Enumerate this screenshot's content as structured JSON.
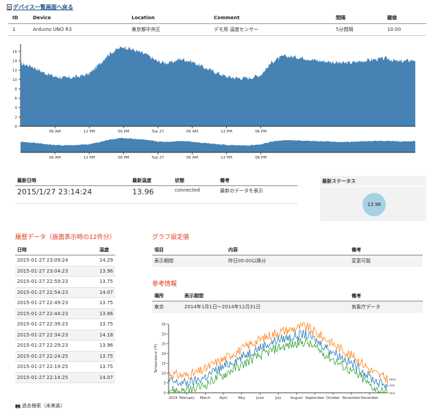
{
  "back_link": {
    "label": "デバイス一覧画面へ戻る"
  },
  "device_table": {
    "headers": [
      "ID",
      "Device",
      "Location",
      "Comment",
      "間隔",
      "閾値"
    ],
    "row": [
      "1",
      "Arduino UNO R3",
      "東京都中央区",
      "デモ用 温度センサー",
      "5分間隔",
      "10.00"
    ]
  },
  "chart_data": [
    {
      "type": "area",
      "title": "",
      "xlabel": "",
      "ylabel": "",
      "x_ticks": [
        "06 AM",
        "12 PM",
        "06 PM",
        "Tue 27",
        "06 AM",
        "12 PM",
        "06 PM"
      ],
      "y_ticks": [
        "0",
        "2",
        "4",
        "6",
        "8",
        "10",
        "12",
        "14",
        "16"
      ],
      "ylim": [
        0,
        17
      ],
      "x_hours": [
        0,
        2,
        4,
        6,
        8,
        10,
        12,
        14,
        15,
        16,
        17,
        18,
        20,
        22,
        24,
        26,
        28,
        30,
        32,
        34,
        36,
        38,
        39,
        40,
        42,
        44,
        46,
        48,
        50,
        52,
        54,
        56,
        58,
        60,
        62,
        64,
        66,
        69
      ],
      "values": [
        13.4,
        12.8,
        11.5,
        10.6,
        10.3,
        10.6,
        11.2,
        13.5,
        15.0,
        15.8,
        16.5,
        17.0,
        16.2,
        15.3,
        13.8,
        13.5,
        14.4,
        13.8,
        12.6,
        11.6,
        10.6,
        10.3,
        10.3,
        10.3,
        11.0,
        13.8,
        15.0,
        14.8,
        14.5,
        14.0,
        13.8,
        13.5,
        13.6,
        14.0,
        14.3,
        14.5,
        13.8,
        14.2
      ]
    },
    {
      "type": "line",
      "title": "",
      "ylabel": "Temperature (ºF)",
      "xlabel": "",
      "x_ticks": [
        "2014",
        "February",
        "March",
        "April",
        "May",
        "June",
        "July",
        "August",
        "September",
        "October",
        "November",
        "December"
      ],
      "y_ticks": [
        "0",
        "5",
        "10",
        "15",
        "20",
        "25",
        "30",
        "35"
      ],
      "ylim": [
        0,
        35
      ],
      "x_months": [
        0,
        0.5,
        1,
        1.5,
        2,
        2.5,
        3,
        3.5,
        4,
        4.5,
        5,
        5.5,
        6,
        6.5,
        7,
        7.5,
        8,
        8.5,
        9,
        9.5,
        10,
        10.5,
        11,
        11.5,
        12
      ],
      "series": [
        {
          "name": "max",
          "color": "#ff7f0e",
          "values": [
            10,
            9,
            9,
            10,
            12,
            15,
            17,
            20,
            22,
            25,
            27,
            29,
            31,
            32,
            33,
            34,
            31,
            28,
            25,
            22,
            19,
            16,
            12,
            9,
            7
          ]
        },
        {
          "name": "ave",
          "color": "#1f77b4",
          "values": [
            6,
            5,
            5,
            6,
            8,
            11,
            13,
            16,
            18,
            21,
            23,
            25,
            27,
            28,
            29,
            30,
            27,
            24,
            21,
            18,
            15,
            12,
            8,
            5,
            4
          ]
        },
        {
          "name": "min",
          "color": "#2ca02c",
          "values": [
            2,
            1,
            1,
            2,
            4,
            7,
            9,
            12,
            14,
            17,
            19,
            21,
            23,
            24,
            25,
            26,
            23,
            20,
            17,
            14,
            11,
            8,
            4,
            1,
            0
          ]
        }
      ]
    }
  ],
  "latest": {
    "headers": [
      "最新日時",
      "最新温度",
      "状態",
      "備考"
    ],
    "datetime": "2015/1/27 23:14:24",
    "temp": "13.96",
    "status": "connected",
    "note": "最新のデータを表示"
  },
  "latest_status": {
    "title": "最新ステータス",
    "value": "13.96"
  },
  "history": {
    "title": "履歴データ（画面表示時の12件分）",
    "headers": [
      "日時",
      "温度"
    ],
    "rows": [
      [
        "2015-01-27 23:09:24",
        "14.29"
      ],
      [
        "2015-01-27 23:04:23",
        "13.96"
      ],
      [
        "2015-01-27 22:59:23",
        "13.75"
      ],
      [
        "2015-01-27 22:54:23",
        "14.07"
      ],
      [
        "2015-01-27 22:49:23",
        "13.75"
      ],
      [
        "2015-01-27 22:44:23",
        "13.86"
      ],
      [
        "2015-01-27 22:39:23",
        "13.75"
      ],
      [
        "2015-01-27 22:34:23",
        "14.18"
      ],
      [
        "2015-01-27 22:29:23",
        "13.96"
      ],
      [
        "2015-01-27 22:24:25",
        "13.75"
      ],
      [
        "2015-01-27 22:19:25",
        "13.75"
      ],
      [
        "2015-01-27 22:14:25",
        "14.07"
      ]
    ]
  },
  "past_search": {
    "label": "過去検索（未実装）"
  },
  "graph_settings": {
    "title": "グラフ設定値",
    "headers": [
      "項目",
      "内容",
      "備考"
    ],
    "row": [
      "表示期間",
      "昨日00:00以降分",
      "変更可能"
    ]
  },
  "reference": {
    "title": "参考情報",
    "headers": [
      "場所",
      "表示期間",
      "備考"
    ],
    "row": [
      "東京",
      "2014年1月1日〜2014年12月31日",
      "気象庁データ"
    ]
  },
  "colors": {
    "area_fill": "#4682b4",
    "accent_red": "#e2371c",
    "status_circle": "#a7d2e5"
  }
}
